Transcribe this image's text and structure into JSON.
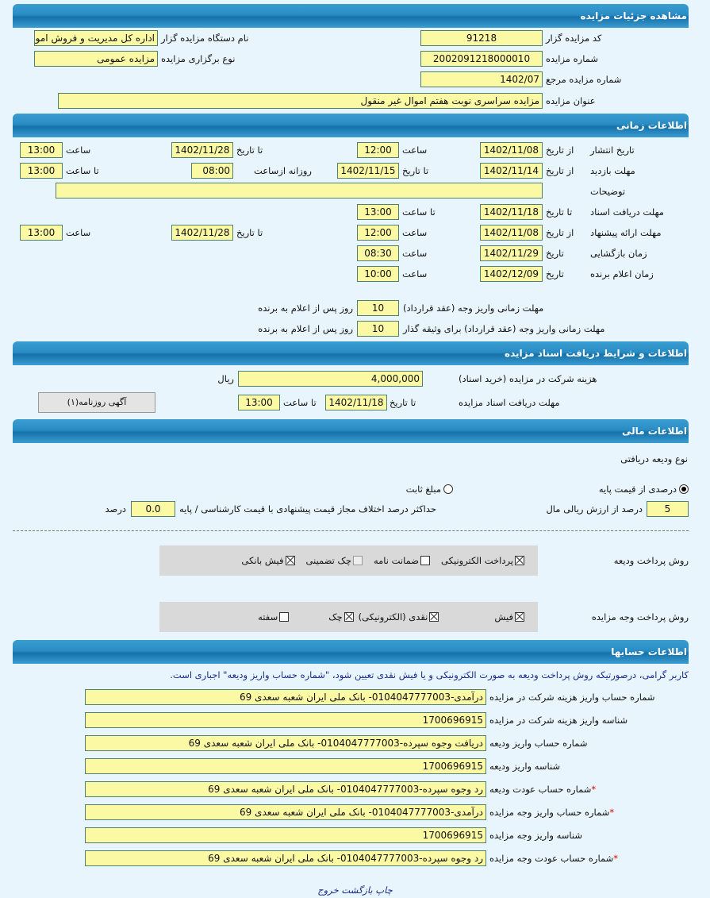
{
  "sections": {
    "details": "مشاهده جزئیات مزایده",
    "time": "اطلاعات زمانی",
    "docs": "اطلاعات و شرایط دریافت اسناد مزایده",
    "finance": "اطلاعات مالی",
    "accounts": "اطلاعات حسابها"
  },
  "details": {
    "code_label": "کد مزایده گزار",
    "code": "91218",
    "org_label": "نام دستگاه مزایده گزار",
    "org": "اداره کل مدیریت و فروش اموال",
    "number_label": "شماره مزایده",
    "number": "2002091218000010",
    "type_label": "نوع برگزاری مزایده",
    "type": "مزایده عمومی",
    "ref_label": "شماره مزایده مرجع",
    "ref": "1402/07",
    "title_label": "عنوان مزایده",
    "title": "مزایده سراسری نوبت هفتم اموال غیر منقول"
  },
  "time": {
    "publish": {
      "label": "تاریخ انتشار",
      "from_label": "از تاریخ",
      "from": "1402/11/08",
      "time1_label": "ساعت",
      "time1": "12:00",
      "to_label": "تا تاریخ",
      "to": "1402/11/28",
      "time2_label": "ساعت",
      "time2": "13:00"
    },
    "visit": {
      "label": "مهلت بازدید",
      "from_label": "از تاریخ",
      "from": "1402/11/14",
      "to_label": "تا تاریخ",
      "to": "1402/11/15",
      "daily_label": "روزانه ازساعت",
      "daily": "08:00",
      "until_label": "تا ساعت",
      "until": "13:00"
    },
    "desc_label": "توضیحات",
    "desc": "",
    "docs": {
      "label": "مهلت دریافت اسناد",
      "to_label": "تا تاریخ",
      "to": "1402/11/18",
      "time_label": "تا ساعت",
      "time": "13:00"
    },
    "offer": {
      "label": "مهلت ارائه پیشنهاد",
      "from_label": "از تاریخ",
      "from": "1402/11/08",
      "time1_label": "ساعت",
      "time1": "12:00",
      "to_label": "تا تاریخ",
      "to": "1402/11/28",
      "time2_label": "ساعت",
      "time2": "13:00"
    },
    "opening": {
      "label": "زمان بازگشایی",
      "date_label": "تاریخ",
      "date": "1402/11/29",
      "time_label": "ساعت",
      "time": "08:30"
    },
    "winner": {
      "label": "زمان اعلام برنده",
      "date_label": "تاریخ",
      "date": "1402/12/09",
      "time_label": "ساعت",
      "time": "10:00"
    },
    "pay1": {
      "label": "مهلت زمانی واریز وجه (عقد قرارداد)",
      "value": "10",
      "suffix": "روز پس از اعلام به برنده"
    },
    "pay2": {
      "label": "مهلت زمانی واریز وجه (عقد قرارداد) برای وثیقه گذار",
      "value": "10",
      "suffix": "روز پس از اعلام به برنده"
    }
  },
  "docs": {
    "fee_label": "هزینه شرکت در مزایده (خرید اسناد)",
    "fee": "4,000,000",
    "fee_unit": "ریال",
    "deadline_label": "مهلت دریافت اسناد مزایده",
    "to_label": "تا تاریخ",
    "to": "1402/11/18",
    "time_label": "تا ساعت",
    "time": "13:00",
    "newspaper_button": "آگهی روزنامه(۱)"
  },
  "finance": {
    "deposit_type_label": "نوع ودیعه دریافتی",
    "radio_percent": "درصدی از قیمت پایه",
    "radio_fixed": "مبلغ ثابت",
    "selected": "percent",
    "percent": "5",
    "percent_label": "درصد از ارزش ریالی مال",
    "max_diff_label": "حداکثر درصد اختلاف مجاز قیمت پیشنهادی با قیمت کارشناسی / پایه",
    "max_diff": "0.0",
    "max_diff_unit": "درصد",
    "deposit_method_label": "روش پرداخت ودیعه",
    "deposit_methods": [
      {
        "label": "پرداخت الکترونیکی",
        "checked": true
      },
      {
        "label": "ضمانت نامه",
        "checked": false
      },
      {
        "label": "چک تضمینی",
        "checked": false,
        "disabled": true
      },
      {
        "label": "فیش بانکی",
        "checked": true
      }
    ],
    "payment_method_label": "روش پرداخت وجه مزایده",
    "payment_methods": [
      {
        "label": "فیش",
        "checked": true
      },
      {
        "label": "نقدی (الکترونیکی)",
        "checked": true
      },
      {
        "label": "چک",
        "checked": true
      },
      {
        "label": "سفته",
        "checked": false
      }
    ]
  },
  "accounts": {
    "notice": "کاربر گرامی، درصورتیکه روش پرداخت ودیعه به صورت الکترونیکی و یا فیش نقدی تعیین شود، \"شماره حساب واریز ودیعه\" اجباری است.",
    "rows": [
      {
        "label": "شماره حساب واریز هزینه شرکت در مزایده",
        "value": "درآمدی-0104047777003- بانک ملی ایران شعبه سعدی 69",
        "required": false
      },
      {
        "label": "شناسه واریز هزینه شرکت در مزایده",
        "value": "1700696915",
        "required": false
      },
      {
        "label": "شماره حساب واریز ودیعه",
        "value": "دریافت وجوه سپرده-0104047777003- بانک ملی ایران شعبه سعدی 69",
        "required": false
      },
      {
        "label": "شناسه واریز ودیعه",
        "value": "1700696915",
        "required": false
      },
      {
        "label": "شماره حساب عودت ودیعه",
        "value": "رد وجوه سپرده-0104047777003- بانک ملی ایران شعبه سعدی 69",
        "required": true
      },
      {
        "label": "شماره حساب واریز وجه مزایده",
        "value": "درآمدی-0104047777003- بانک ملی ایران شعبه سعدی 69",
        "required": true
      },
      {
        "label": "شناسه واریز وجه مزایده",
        "value": "1700696915",
        "required": false
      },
      {
        "label": "شماره حساب عودت وجه مزایده",
        "value": "رد وجوه سپرده-0104047777003- بانک ملی ایران شعبه سعدی 69",
        "required": true
      }
    ]
  },
  "footer": {
    "print": "چاپ",
    "back": "بازگشت",
    "exit": "خروج"
  },
  "colors": {
    "header": "#1f7fba",
    "field": "#fbf9a4",
    "background": "#e9f5fc"
  }
}
